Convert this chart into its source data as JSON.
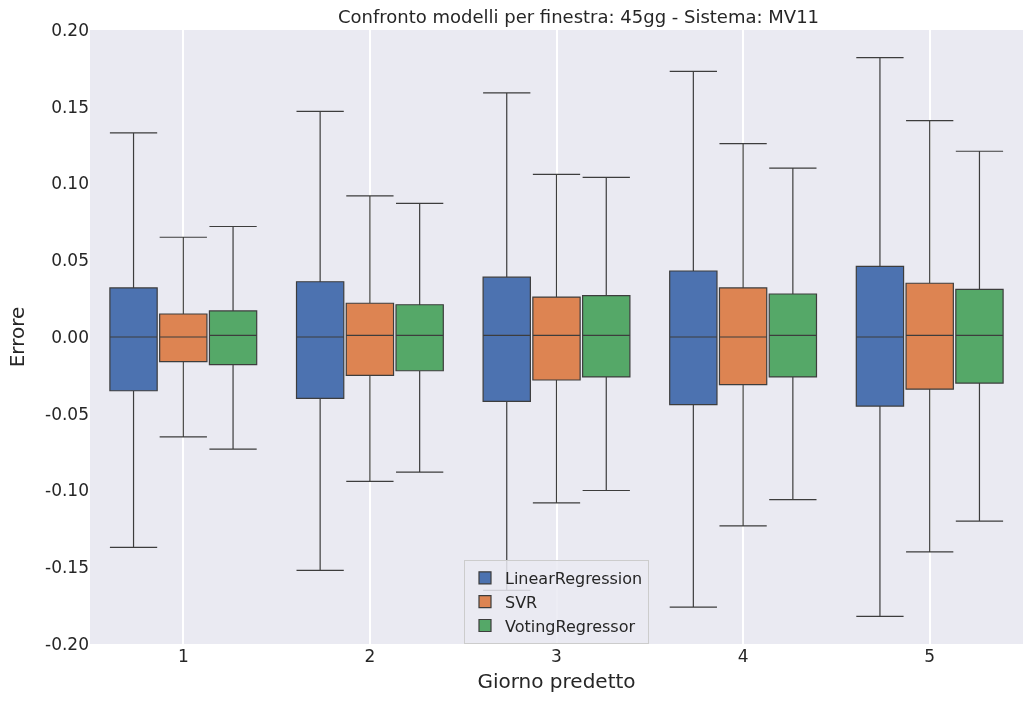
{
  "chart_data": {
    "type": "box",
    "title": "Confronto modelli per finestra: 45gg - Sistema: MV11",
    "xlabel": "Giorno predetto",
    "ylabel": "Errore",
    "categories": [
      "1",
      "2",
      "3",
      "4",
      "5"
    ],
    "ylim": [
      -0.2,
      0.2
    ],
    "yticks": [
      {
        "value": -0.2,
        "label": "-0.20"
      },
      {
        "value": -0.15,
        "label": "-0.15"
      },
      {
        "value": -0.1,
        "label": "-0.10"
      },
      {
        "value": -0.05,
        "label": "-0.05"
      },
      {
        "value": 0,
        "label": "0.00"
      },
      {
        "value": 0.05,
        "label": "0.05"
      },
      {
        "value": 0.1,
        "label": "0.10"
      },
      {
        "value": 0.15,
        "label": "0.15"
      },
      {
        "value": 0.2,
        "label": "0.20"
      }
    ],
    "grid": "x",
    "legend": "bottom",
    "series": [
      {
        "name": "LinearRegression",
        "color": "#4c72b0",
        "boxes": [
          {
            "low": -0.137,
            "q1": -0.035,
            "median": 0,
            "q3": 0.032,
            "high": 0.133
          },
          {
            "low": -0.152,
            "q1": -0.04,
            "median": 0,
            "q3": 0.036,
            "high": 0.147
          },
          {
            "low": -0.165,
            "q1": -0.042,
            "median": 0.001,
            "q3": 0.039,
            "high": 0.159
          },
          {
            "low": -0.176,
            "q1": -0.044,
            "median": 0,
            "q3": 0.043,
            "high": 0.173
          },
          {
            "low": -0.182,
            "q1": -0.045,
            "median": 0,
            "q3": 0.046,
            "high": 0.182
          }
        ]
      },
      {
        "name": "SVR",
        "color": "#dd8452",
        "boxes": [
          {
            "low": -0.065,
            "q1": -0.016,
            "median": 0,
            "q3": 0.015,
            "high": 0.065
          },
          {
            "low": -0.094,
            "q1": -0.025,
            "median": 0.001,
            "q3": 0.022,
            "high": 0.092
          },
          {
            "low": -0.108,
            "q1": -0.028,
            "median": 0.001,
            "q3": 0.026,
            "high": 0.106
          },
          {
            "low": -0.123,
            "q1": -0.031,
            "median": 0,
            "q3": 0.032,
            "high": 0.126
          },
          {
            "low": -0.14,
            "q1": -0.034,
            "median": 0.001,
            "q3": 0.035,
            "high": 0.141
          }
        ]
      },
      {
        "name": "VotingRegressor",
        "color": "#55a868",
        "boxes": [
          {
            "low": -0.073,
            "q1": -0.018,
            "median": 0.001,
            "q3": 0.017,
            "high": 0.072
          },
          {
            "low": -0.088,
            "q1": -0.022,
            "median": 0.001,
            "q3": 0.021,
            "high": 0.087
          },
          {
            "low": -0.1,
            "q1": -0.026,
            "median": 0.001,
            "q3": 0.027,
            "high": 0.104
          },
          {
            "low": -0.106,
            "q1": -0.026,
            "median": 0.001,
            "q3": 0.028,
            "high": 0.11
          },
          {
            "low": -0.12,
            "q1": -0.03,
            "median": 0.001,
            "q3": 0.031,
            "high": 0.121
          }
        ]
      }
    ]
  }
}
